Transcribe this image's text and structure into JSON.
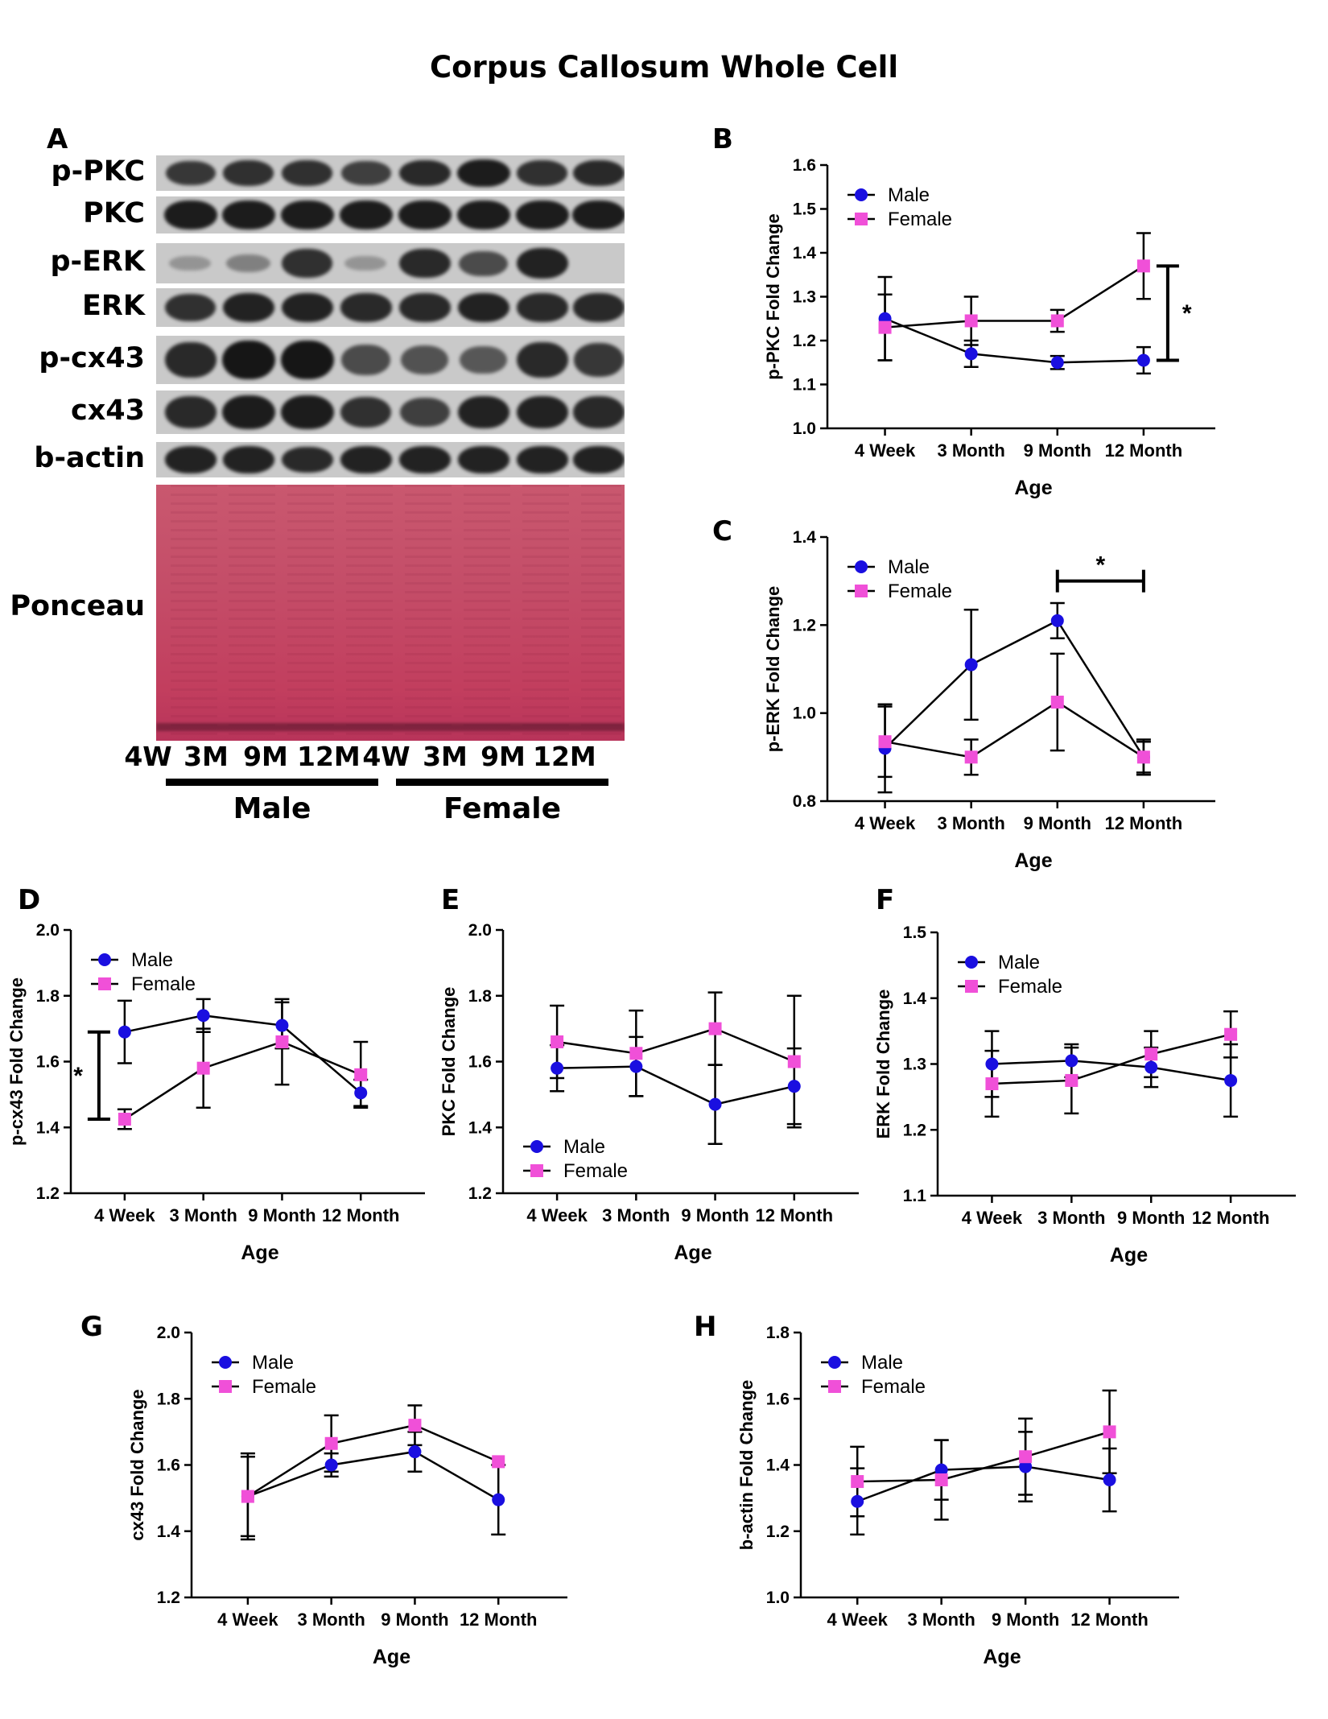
{
  "figure_title": "Corpus Callosum Whole Cell",
  "blot": {
    "letter": "A",
    "rows": [
      {
        "label": "p-PKC",
        "intensities": [
          0.75,
          0.8,
          0.8,
          0.7,
          0.85,
          0.95,
          0.8,
          0.85
        ]
      },
      {
        "label": "PKC",
        "intensities": [
          0.95,
          0.95,
          0.95,
          0.95,
          0.95,
          0.95,
          0.95,
          0.95
        ]
      },
      {
        "label": "p-ERK",
        "intensities": [
          0.05,
          0.2,
          0.8,
          0.05,
          0.85,
          0.6,
          0.9,
          0.0
        ]
      },
      {
        "label": "ERK",
        "intensities": [
          0.8,
          0.9,
          0.9,
          0.85,
          0.85,
          0.9,
          0.85,
          0.85
        ]
      },
      {
        "label": "p-cx43",
        "intensities": [
          0.85,
          1.0,
          1.0,
          0.6,
          0.55,
          0.5,
          0.85,
          0.75
        ]
      },
      {
        "label": "cx43",
        "intensities": [
          0.85,
          0.95,
          0.95,
          0.8,
          0.7,
          0.9,
          0.9,
          0.85
        ]
      },
      {
        "label": "b-actin",
        "intensities": [
          0.9,
          0.9,
          0.85,
          0.9,
          0.9,
          0.9,
          0.9,
          0.9
        ]
      }
    ],
    "ponceau_label": "Ponceau",
    "lanes": [
      "4W",
      "3M",
      "9M",
      "12M",
      "4W",
      "3M",
      "9M",
      "12M"
    ],
    "groups": [
      "Male",
      "Female"
    ]
  },
  "colors": {
    "male": "#1a0fe0",
    "female": "#f050d8",
    "line": "#000000"
  },
  "chart_data": [
    {
      "letter": "B",
      "type": "line",
      "categories": [
        "4 Week",
        "3 Month",
        "9 Month",
        "12 Month"
      ],
      "xlabel": "Age",
      "ylabel": "p-PKC Fold Change",
      "ylim": [
        1.0,
        1.6
      ],
      "yticks": [
        "1.0",
        "1.1",
        "1.2",
        "1.3",
        "1.4",
        "1.5",
        "1.6"
      ],
      "legend_position": "top-left",
      "series": [
        {
          "name": "Male",
          "marker": "circle",
          "values": [
            1.25,
            1.17,
            1.15,
            1.155
          ],
          "error": [
            0.095,
            0.03,
            0.015,
            0.03
          ]
        },
        {
          "name": "Female",
          "marker": "square",
          "values": [
            1.23,
            1.245,
            1.245,
            1.37
          ],
          "error": [
            0.075,
            0.055,
            0.025,
            0.075
          ]
        }
      ],
      "significance": [
        {
          "text": "*",
          "type": "vertical",
          "x_after": 3,
          "y1": 1.155,
          "y2": 1.37
        }
      ]
    },
    {
      "letter": "C",
      "type": "line",
      "categories": [
        "4 Week",
        "3 Month",
        "9 Month",
        "12 Month"
      ],
      "xlabel": "Age",
      "ylabel": "p-ERK Fold Change",
      "ylim": [
        0.8,
        1.4
      ],
      "yticks": [
        "0.8",
        "1.0",
        "1.2",
        "1.4"
      ],
      "legend_position": "top-left",
      "series": [
        {
          "name": "Male",
          "marker": "circle",
          "values": [
            0.92,
            1.11,
            1.21,
            0.9
          ],
          "error": [
            0.1,
            0.125,
            0.04,
            0.04
          ]
        },
        {
          "name": "Female",
          "marker": "square",
          "values": [
            0.935,
            0.9,
            1.025,
            0.9
          ],
          "error": [
            0.08,
            0.04,
            0.11,
            0.035
          ]
        }
      ],
      "significance": [
        {
          "text": "*",
          "type": "horizontal",
          "x1": 2,
          "x2": 3,
          "y": 1.3
        }
      ]
    },
    {
      "letter": "D",
      "type": "line",
      "categories": [
        "4 Week",
        "3 Month",
        "9 Month",
        "12 Month"
      ],
      "xlabel": "Age",
      "ylabel": "p-cx43 Fold Change",
      "ylim": [
        1.2,
        2.0
      ],
      "yticks": [
        "1.2",
        "1.4",
        "1.6",
        "1.8",
        "2.0"
      ],
      "legend_position": "top-left",
      "series": [
        {
          "name": "Male",
          "marker": "circle",
          "values": [
            1.69,
            1.74,
            1.71,
            1.505
          ],
          "error": [
            0.095,
            0.05,
            0.07,
            0.04
          ]
        },
        {
          "name": "Female",
          "marker": "square",
          "values": [
            1.425,
            1.58,
            1.66,
            1.56
          ],
          "error": [
            0.03,
            0.12,
            0.13,
            0.1
          ]
        }
      ],
      "significance": [
        {
          "text": "*",
          "type": "vertical",
          "x_before": 0,
          "y1": 1.425,
          "y2": 1.69
        }
      ]
    },
    {
      "letter": "E",
      "type": "line",
      "categories": [
        "4 Week",
        "3 Month",
        "9 Month",
        "12 Month"
      ],
      "xlabel": "Age",
      "ylabel": "PKC Fold Change",
      "ylim": [
        1.2,
        2.0
      ],
      "yticks": [
        "1.2",
        "1.4",
        "1.6",
        "1.8",
        "2.0"
      ],
      "legend_position": "bottom-left",
      "series": [
        {
          "name": "Male",
          "marker": "circle",
          "values": [
            1.58,
            1.585,
            1.47,
            1.525
          ],
          "error": [
            0.07,
            0.09,
            0.12,
            0.115
          ]
        },
        {
          "name": "Female",
          "marker": "square",
          "values": [
            1.66,
            1.625,
            1.7,
            1.6
          ],
          "error": [
            0.11,
            0.13,
            0.11,
            0.2
          ]
        }
      ],
      "significance": []
    },
    {
      "letter": "F",
      "type": "line",
      "categories": [
        "4 Week",
        "3 Month",
        "9 Month",
        "12 Month"
      ],
      "xlabel": "Age",
      "ylabel": "ERK Fold Change",
      "ylim": [
        1.1,
        1.5
      ],
      "yticks": [
        "1.1",
        "1.2",
        "1.3",
        "1.4",
        "1.5"
      ],
      "legend_position": "top-left",
      "series": [
        {
          "name": "Male",
          "marker": "circle",
          "values": [
            1.3,
            1.305,
            1.295,
            1.275
          ],
          "error": [
            0.05,
            0.025,
            0.03,
            0.055
          ]
        },
        {
          "name": "Female",
          "marker": "square",
          "values": [
            1.27,
            1.275,
            1.315,
            1.345
          ],
          "error": [
            0.05,
            0.05,
            0.035,
            0.035
          ]
        }
      ],
      "significance": []
    },
    {
      "letter": "G",
      "type": "line",
      "categories": [
        "4 Week",
        "3 Month",
        "9 Month",
        "12 Month"
      ],
      "xlabel": "Age",
      "ylabel": "cx43 Fold Change",
      "ylim": [
        1.2,
        2.0
      ],
      "yticks": [
        "1.2",
        "1.4",
        "1.6",
        "1.8",
        "2.0"
      ],
      "legend_position": "top-left",
      "series": [
        {
          "name": "Male",
          "marker": "circle",
          "values": [
            1.505,
            1.6,
            1.64,
            1.495
          ],
          "error": [
            0.13,
            0.035,
            0.06,
            0.105
          ]
        },
        {
          "name": "Female",
          "marker": "square",
          "values": [
            1.505,
            1.665,
            1.72,
            1.61
          ],
          "error": [
            0.12,
            0.085,
            0.06,
            0.0
          ]
        }
      ],
      "significance": []
    },
    {
      "letter": "H",
      "type": "line",
      "categories": [
        "4 Week",
        "3 Month",
        "9 Month",
        "12 Month"
      ],
      "xlabel": "Age",
      "ylabel": "b-actin Fold Change",
      "ylim": [
        1.0,
        1.8
      ],
      "yticks": [
        "1.0",
        "1.2",
        "1.4",
        "1.6",
        "1.8"
      ],
      "legend_position": "top-left",
      "series": [
        {
          "name": "Male",
          "marker": "circle",
          "values": [
            1.29,
            1.385,
            1.395,
            1.355
          ],
          "error": [
            0.1,
            0.09,
            0.105,
            0.095
          ]
        },
        {
          "name": "Female",
          "marker": "square",
          "values": [
            1.35,
            1.355,
            1.425,
            1.5
          ],
          "error": [
            0.105,
            0.12,
            0.115,
            0.125
          ]
        }
      ],
      "significance": []
    }
  ]
}
